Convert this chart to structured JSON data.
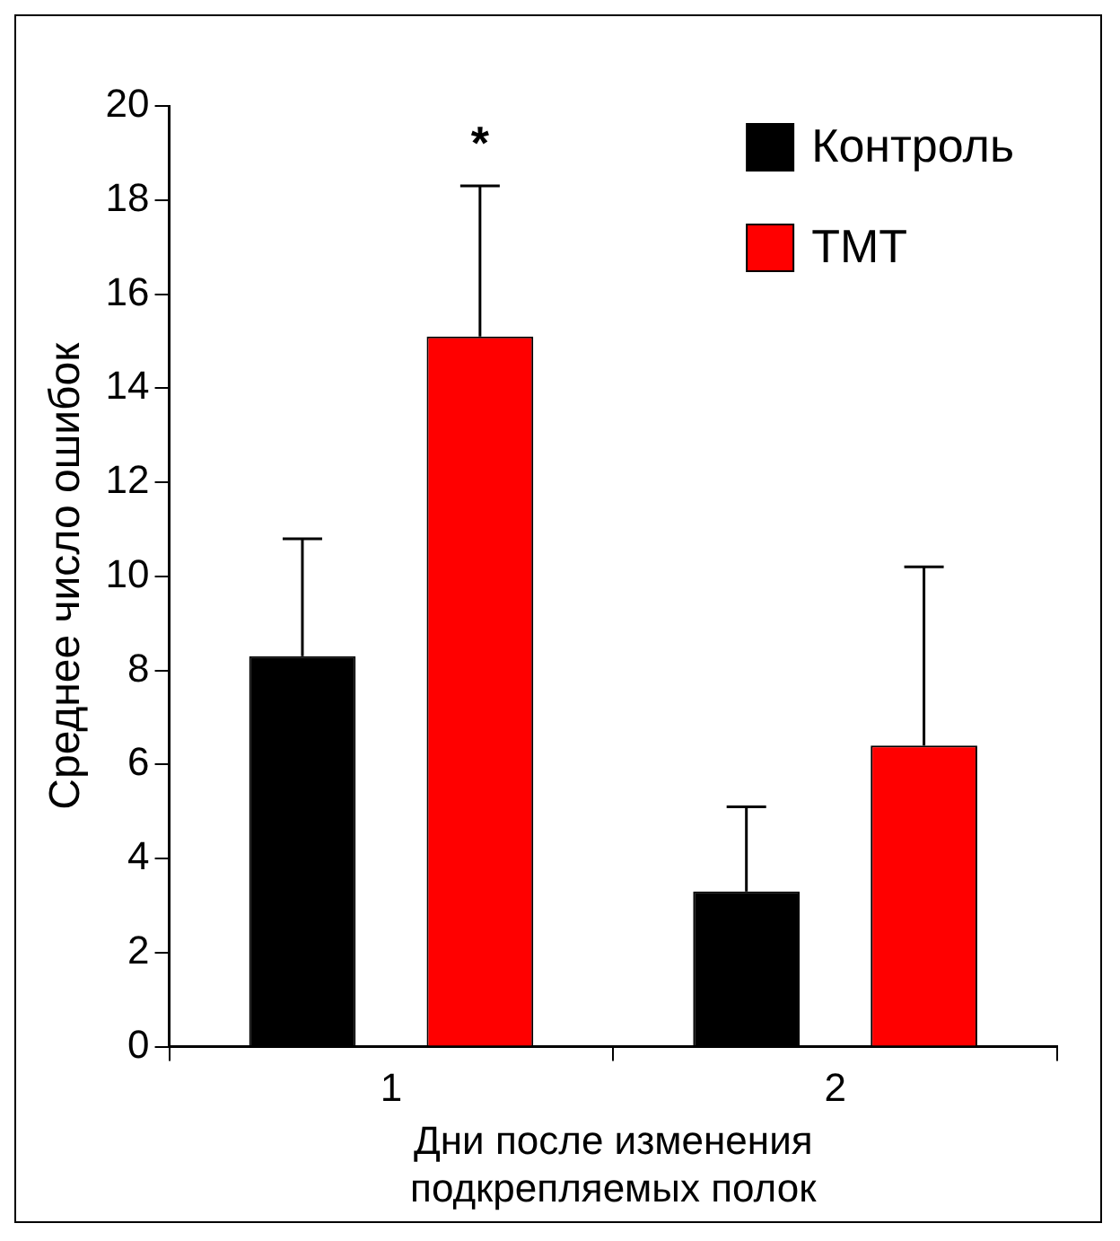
{
  "chart_data": {
    "type": "bar",
    "xlabel": "Дни после изменения\nподкрепляемых полок",
    "ylabel": "Среднее число ошибок",
    "categories": [
      "1",
      "2"
    ],
    "series": [
      {
        "name": "Контроль",
        "color": "#000000",
        "values": [
          8.3,
          3.3
        ],
        "errors": [
          [
            8.3,
            10.8
          ],
          [
            3.3,
            5.1
          ]
        ]
      },
      {
        "name": "ТМТ",
        "color": "#ff0000",
        "values": [
          15.1,
          6.4
        ],
        "errors": [
          [
            15.1,
            18.3
          ],
          [
            6.4,
            10.2
          ]
        ]
      }
    ],
    "ylim": [
      0,
      20
    ],
    "yticks": [
      0,
      2,
      4,
      6,
      8,
      10,
      12,
      14,
      16,
      18,
      20
    ],
    "grid": false,
    "legend": "top right",
    "annotations": [
      "*"
    ]
  }
}
